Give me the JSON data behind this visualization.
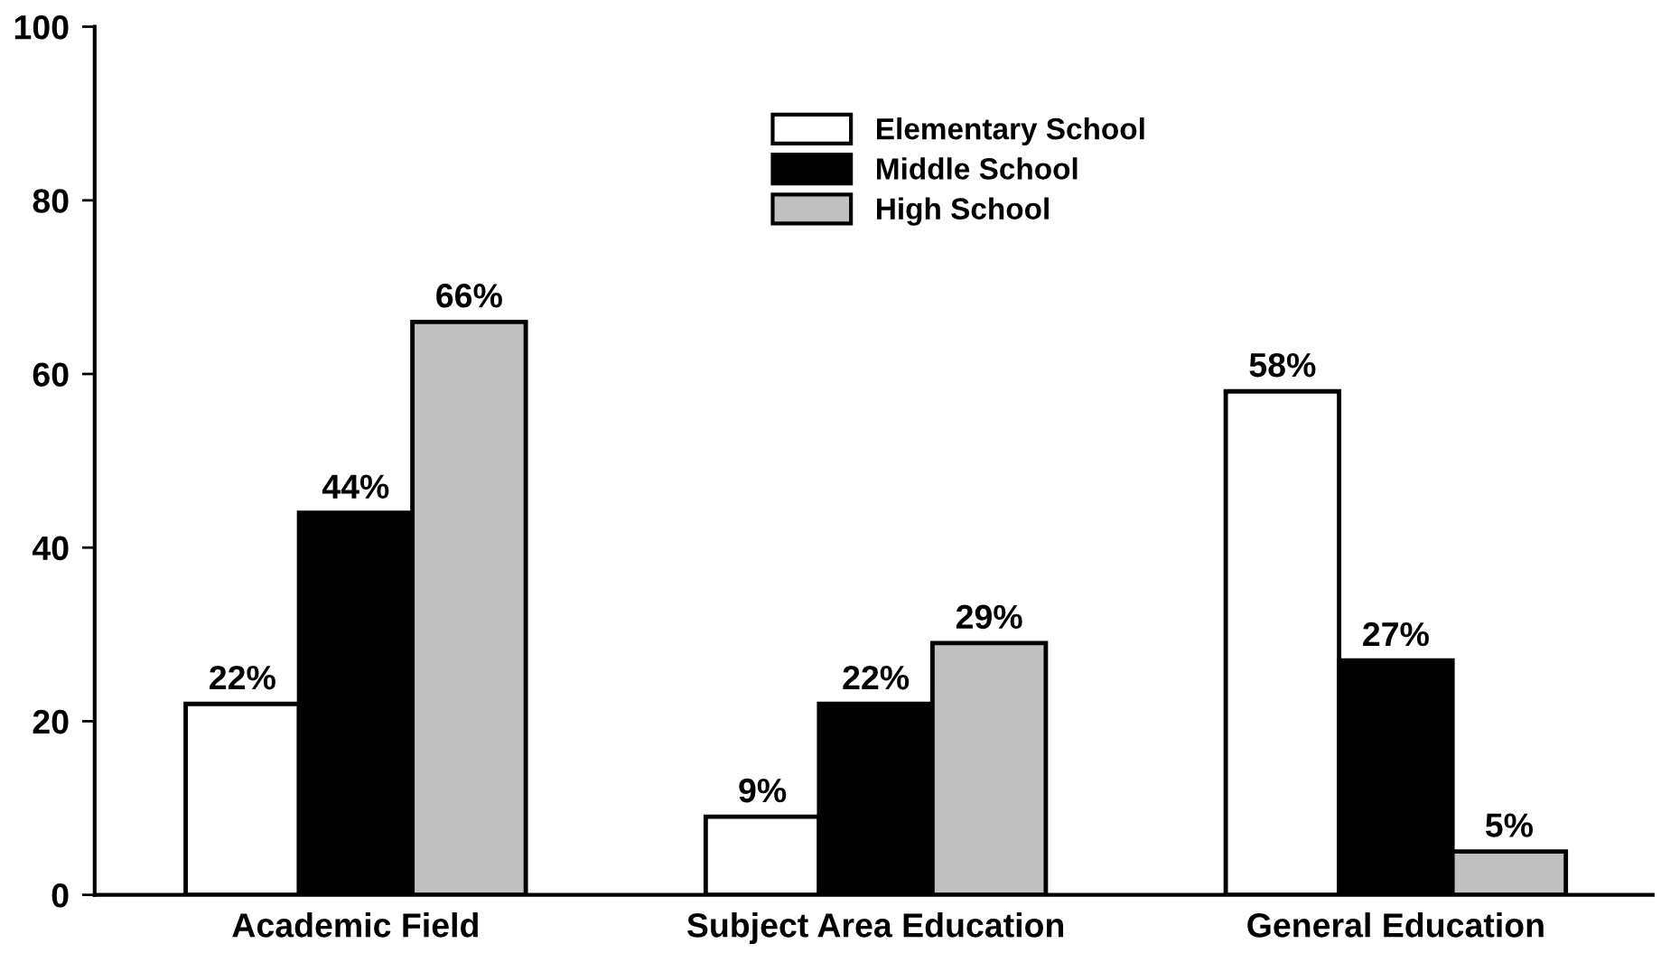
{
  "chart_data": {
    "type": "bar",
    "categories": [
      "Academic Field",
      "Subject Area Education",
      "General Education"
    ],
    "series": [
      {
        "name": "Elementary School",
        "color": "#ffffff",
        "values": [
          22,
          9,
          58
        ],
        "value_labels": [
          "22%",
          "9%",
          "58%"
        ]
      },
      {
        "name": "Middle School",
        "color": "#000000",
        "values": [
          44,
          22,
          27
        ],
        "value_labels": [
          "44%",
          "22%",
          "27%"
        ]
      },
      {
        "name": "High School",
        "color": "#c0c0c0",
        "values": [
          66,
          29,
          5
        ],
        "value_labels": [
          "66%",
          "29%",
          "5%"
        ]
      }
    ],
    "ylim": [
      0,
      100
    ],
    "yticks": [
      0,
      20,
      40,
      60,
      80,
      100
    ],
    "grid": false,
    "legend": "top"
  }
}
